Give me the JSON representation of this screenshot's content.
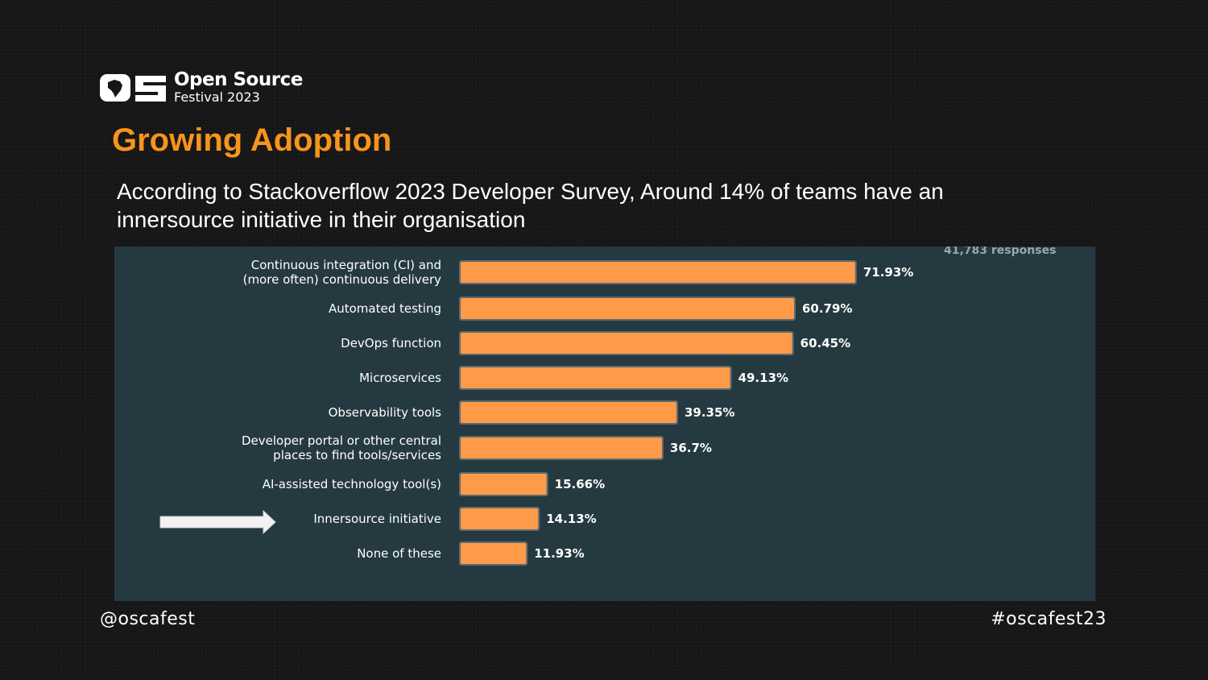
{
  "logo": {
    "line1": "Open Source",
    "line2": "Festival 2023"
  },
  "slide": {
    "title": "Growing Adoption",
    "subtitle": "According to Stackoverflow 2023 Developer Survey, Around 14% of teams have an innersource initiative in their organisation"
  },
  "chart_data": {
    "type": "bar",
    "orientation": "horizontal",
    "responses_note": "41,783 responses",
    "categories": [
      [
        "Continuous integration (CI) and",
        "(more often) continuous delivery"
      ],
      [
        "Automated testing"
      ],
      [
        "DevOps function"
      ],
      [
        "Microservices"
      ],
      [
        "Observability tools"
      ],
      [
        "Developer portal or other central",
        "places to find tools/services"
      ],
      [
        "AI-assisted technology tool(s)"
      ],
      [
        "Innersource initiative"
      ],
      [
        "None of these"
      ]
    ],
    "values": [
      71.93,
      60.79,
      60.45,
      49.13,
      39.35,
      36.7,
      15.66,
      14.13,
      11.93
    ],
    "value_labels": [
      "71.93%",
      "60.79%",
      "60.45%",
      "49.13%",
      "39.35%",
      "36.7%",
      "15.66%",
      "14.13%",
      "11.93%"
    ],
    "highlighted_category_index": 7,
    "bar_color": "#ff9a48",
    "bar_outline_color": "#5d6b70",
    "panel_color": "#253940",
    "label_color": "#ffffff",
    "note_color": "#9aa7ab"
  },
  "colors": {
    "background": "#161616",
    "accent": "#f7941d"
  },
  "footer": {
    "handle": "@oscafest",
    "hashtag": "#oscafest23"
  }
}
